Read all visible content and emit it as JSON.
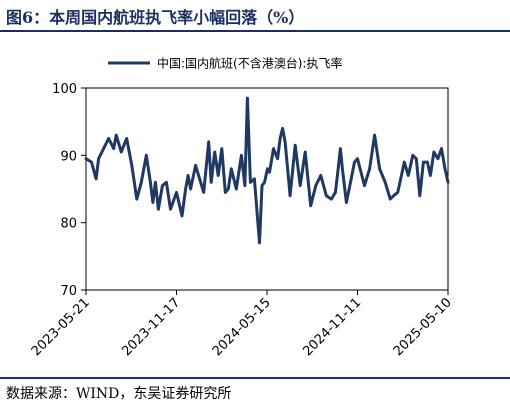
{
  "figure": {
    "title": "图6：本周国内航班执飞率小幅回落（%）",
    "source": "数据来源：WIND，东吴证券研究所"
  },
  "colors": {
    "line": "#1f3864",
    "frame": "#000000",
    "rule": "#1a2f5f"
  },
  "chart_data": {
    "type": "line",
    "title": "",
    "xlabel": "",
    "ylabel": "",
    "ylim": [
      70,
      100
    ],
    "y_ticks": [
      70,
      80,
      90,
      100
    ],
    "x_tick_labels": [
      "2023-05-21",
      "2023-11-17",
      "2024-05-15",
      "2024-11-11",
      "2025-05-10"
    ],
    "x_range": [
      "2023-05-21",
      "2025-05-10"
    ],
    "grid": false,
    "legend": "top",
    "series": [
      {
        "name": "中国:国内航班(不含港澳台):执飞率",
        "x": [
          "2023-05-21",
          "2023-06-01",
          "2023-06-10",
          "2023-06-15",
          "2023-06-25",
          "2023-07-05",
          "2023-07-15",
          "2023-07-20",
          "2023-07-30",
          "2023-08-10",
          "2023-08-20",
          "2023-08-30",
          "2023-09-08",
          "2023-09-18",
          "2023-09-26",
          "2023-10-01",
          "2023-10-06",
          "2023-10-12",
          "2023-10-20",
          "2023-10-28",
          "2023-11-05",
          "2023-11-17",
          "2023-11-28",
          "2023-12-05",
          "2023-12-10",
          "2023-12-15",
          "2023-12-25",
          "2024-01-10",
          "2024-01-20",
          "2024-01-25",
          "2024-02-01",
          "2024-02-08",
          "2024-02-15",
          "2024-02-22",
          "2024-02-28",
          "2024-03-05",
          "2024-03-15",
          "2024-03-25",
          "2024-04-01",
          "2024-04-06",
          "2024-04-12",
          "2024-04-20",
          "2024-04-30",
          "2024-05-05",
          "2024-05-10",
          "2024-05-16",
          "2024-05-20",
          "2024-05-28",
          "2024-06-05",
          "2024-06-10",
          "2024-06-15",
          "2024-06-20",
          "2024-06-30",
          "2024-07-10",
          "2024-07-20",
          "2024-07-30",
          "2024-08-10",
          "2024-08-20",
          "2024-08-30",
          "2024-09-10",
          "2024-09-20",
          "2024-09-28",
          "2024-10-02",
          "2024-10-08",
          "2024-10-12",
          "2024-10-20",
          "2024-10-28",
          "2024-11-05",
          "2024-11-11",
          "2024-11-25",
          "2024-12-05",
          "2024-12-15",
          "2024-12-25",
          "2025-01-05",
          "2025-01-15",
          "2025-01-22",
          "2025-01-30",
          "2025-02-05",
          "2025-02-12",
          "2025-02-20",
          "2025-03-01",
          "2025-03-08",
          "2025-03-15",
          "2025-03-22",
          "2025-03-30",
          "2025-04-05",
          "2025-04-12",
          "2025-04-20",
          "2025-04-27",
          "2025-05-04",
          "2025-05-10"
        ],
        "values": [
          89.5,
          89.0,
          86.5,
          89.5,
          91.0,
          92.5,
          91.0,
          93.0,
          90.5,
          92.5,
          88.5,
          83.5,
          86.0,
          90.0,
          86.0,
          83.0,
          86.0,
          82.0,
          85.5,
          86.0,
          82.0,
          84.5,
          81.0,
          85.0,
          87.0,
          85.0,
          88.5,
          84.5,
          92.0,
          86.0,
          90.5,
          87.0,
          91.0,
          84.5,
          85.0,
          88.0,
          85.0,
          90.0,
          85.5,
          98.5,
          86.0,
          86.5,
          77.0,
          85.5,
          86.0,
          88.0,
          87.5,
          91.0,
          89.5,
          92.5,
          94.0,
          92.0,
          84.0,
          91.5,
          85.5,
          90.5,
          82.5,
          85.5,
          87.0,
          84.0,
          83.5,
          84.5,
          87.0,
          91.0,
          88.0,
          83.0,
          86.0,
          89.0,
          89.5,
          85.5,
          88.0,
          93.0,
          88.0,
          86.0,
          83.5,
          84.0,
          84.5,
          86.5,
          89.0,
          87.0,
          90.0,
          89.5,
          84.0,
          89.0,
          89.0,
          87.0,
          90.5,
          89.5,
          91.0,
          88.0,
          86.0
        ]
      }
    ]
  }
}
